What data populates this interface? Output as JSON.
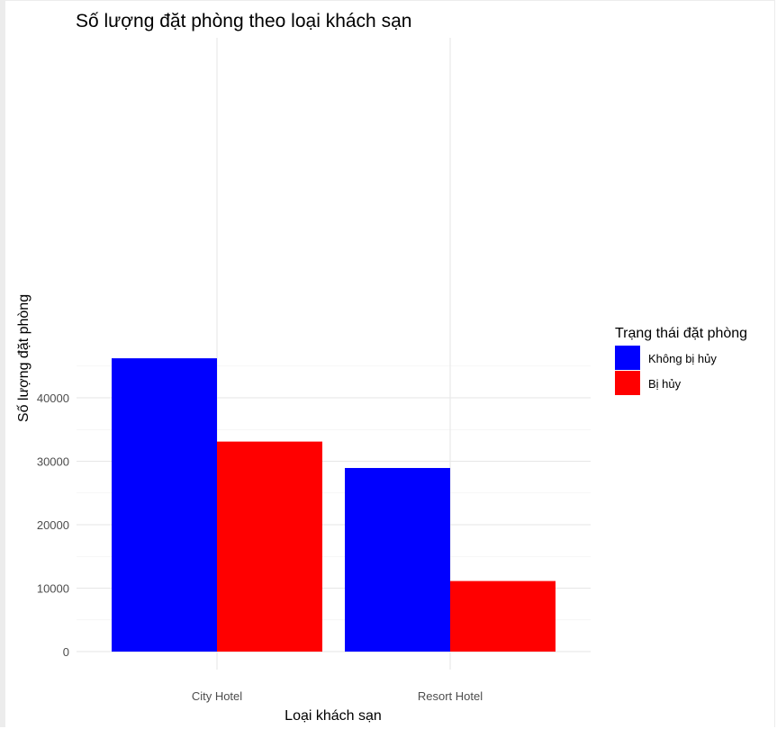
{
  "chart_data": {
    "type": "bar",
    "title": "Số lượng đặt phòng theo loại khách sạn",
    "xlabel": "Loại khách sạn",
    "ylabel": "Số lượng đặt phòng",
    "categories": [
      "City Hotel",
      "Resort Hotel"
    ],
    "series": [
      {
        "name": "Không bị hủy",
        "color": "#0000FF",
        "values": [
          46228,
          28938
        ]
      },
      {
        "name": "Bị hủy",
        "color": "#FF0000",
        "values": [
          33102,
          11122
        ]
      }
    ],
    "ylim": [
      0,
      48000
    ],
    "yticks": [
      0,
      10000,
      20000,
      30000,
      40000
    ],
    "yticks_labels": [
      "0",
      "10000",
      "20000",
      "30000",
      "40000"
    ],
    "grid": true,
    "legend": {
      "title": "Trạng thái đặt phòng",
      "position": "right"
    }
  }
}
